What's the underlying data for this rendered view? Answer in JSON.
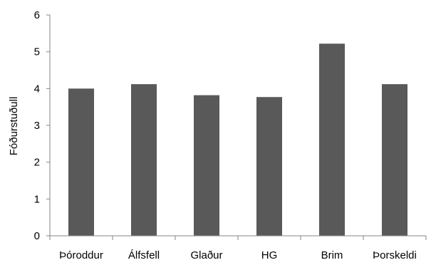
{
  "chart_data": {
    "type": "bar",
    "title": "",
    "xlabel": "",
    "ylabel": "Fóðurstuðull",
    "categories": [
      "Þóroddur",
      "Álfsfell",
      "Glaður",
      "HG",
      "Brim",
      "Þorskeldi"
    ],
    "values": [
      4.0,
      4.12,
      3.82,
      3.77,
      5.22,
      4.12
    ],
    "ylim": [
      0,
      6
    ],
    "yticks": [
      "0",
      "1",
      "2",
      "3",
      "4",
      "5",
      "6"
    ],
    "grid": false,
    "legend": "none",
    "colors": {
      "bar": "#595959",
      "axis": "#868686"
    }
  }
}
